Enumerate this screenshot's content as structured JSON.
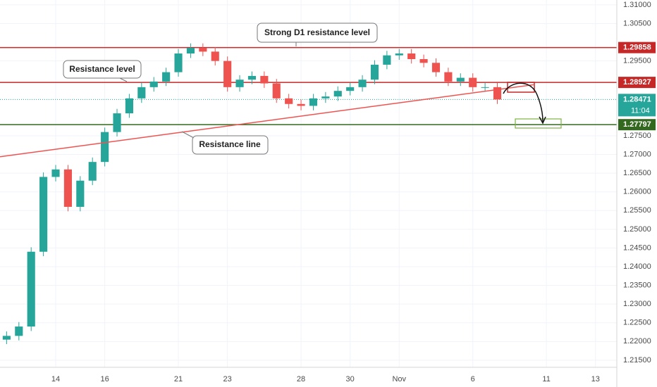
{
  "chart_data": {
    "type": "candlestick",
    "up_color": "#26a69a",
    "down_color": "#ef5350",
    "x": [
      -2,
      -1.5,
      -1,
      -0.5,
      0,
      0.5,
      1,
      1.5,
      2,
      2.5,
      3,
      3.5,
      4,
      4.5,
      5,
      5.5,
      6,
      6.5,
      7,
      7.5,
      8,
      8.5,
      9,
      9.5,
      10,
      10.5,
      11,
      11.5,
      12,
      12.5,
      13,
      13.5,
      14,
      14.5,
      15,
      15.5,
      16,
      16.5,
      17,
      17.5,
      18
    ],
    "open": [
      1.2205,
      1.2215,
      1.224,
      1.244,
      1.264,
      1.266,
      1.256,
      1.263,
      1.268,
      1.276,
      1.281,
      1.285,
      1.288,
      1.2895,
      1.292,
      1.297,
      1.2985,
      1.2975,
      1.295,
      1.288,
      1.29,
      1.291,
      1.289,
      1.285,
      1.2835,
      1.283,
      1.285,
      1.2855,
      1.287,
      1.288,
      1.29,
      1.294,
      1.2965,
      1.297,
      1.2955,
      1.2945,
      1.292,
      1.2895,
      1.2905,
      1.288,
      1.288
    ],
    "high": [
      1.2227,
      1.2252,
      1.2452,
      1.2652,
      1.2672,
      1.2672,
      1.2642,
      1.2692,
      1.2772,
      1.2822,
      1.2862,
      1.2892,
      1.2907,
      1.2932,
      1.2982,
      1.2997,
      1.2997,
      1.2987,
      1.2962,
      1.2912,
      1.2922,
      1.2922,
      1.2902,
      1.2862,
      1.2847,
      1.2862,
      1.2867,
      1.2882,
      1.2892,
      1.2912,
      1.2952,
      1.2977,
      1.2982,
      1.2982,
      1.2967,
      1.2957,
      1.2932,
      1.2917,
      1.2917,
      1.2892,
      1.2892
    ],
    "low": [
      1.2193,
      1.2203,
      1.2228,
      1.2428,
      1.2628,
      1.2548,
      1.2548,
      1.2618,
      1.2668,
      1.2748,
      1.2798,
      1.2838,
      1.2868,
      1.2883,
      1.2908,
      1.2958,
      1.2963,
      1.2938,
      1.2868,
      1.2868,
      1.2888,
      1.2878,
      1.2838,
      1.2823,
      1.2818,
      1.2818,
      1.2838,
      1.2843,
      1.2858,
      1.2868,
      1.2888,
      1.2928,
      1.2953,
      1.2943,
      1.2933,
      1.2908,
      1.2883,
      1.2883,
      1.2868,
      1.2868,
      1.2835
    ],
    "close": [
      1.2215,
      1.224,
      1.244,
      1.264,
      1.266,
      1.256,
      1.263,
      1.268,
      1.276,
      1.281,
      1.285,
      1.288,
      1.2895,
      1.292,
      1.297,
      1.2985,
      1.2975,
      1.295,
      1.288,
      1.29,
      1.291,
      1.289,
      1.285,
      1.2835,
      1.283,
      1.285,
      1.2855,
      1.287,
      1.288,
      1.29,
      1.294,
      1.2965,
      1.297,
      1.2955,
      1.2945,
      1.292,
      1.2895,
      1.2905,
      1.288,
      1.288,
      1.2847
    ],
    "xlim": [
      -2.27,
      22.87
    ],
    "ylim": [
      1.2131,
      1.3113
    ],
    "xticks": [
      {
        "value": 0,
        "label": "14"
      },
      {
        "value": 2,
        "label": "16"
      },
      {
        "value": 5,
        "label": "21"
      },
      {
        "value": 7,
        "label": "23"
      },
      {
        "value": 10,
        "label": "28"
      },
      {
        "value": 12,
        "label": "30"
      },
      {
        "value": 14,
        "label": "Nov"
      },
      {
        "value": 17,
        "label": "6"
      },
      {
        "value": 20,
        "label": "11"
      },
      {
        "value": 22,
        "label": "13"
      }
    ],
    "yticks": [
      {
        "value": 1.31,
        "label": "1.31000"
      },
      {
        "value": 1.305,
        "label": "1.30500"
      },
      {
        "value": 1.295,
        "label": "1.29500"
      },
      {
        "value": 1.275,
        "label": "1.27500"
      },
      {
        "value": 1.27,
        "label": "1.27000"
      },
      {
        "value": 1.265,
        "label": "1.26500"
      },
      {
        "value": 1.26,
        "label": "1.26000"
      },
      {
        "value": 1.255,
        "label": "1.25500"
      },
      {
        "value": 1.25,
        "label": "1.25000"
      },
      {
        "value": 1.245,
        "label": "1.24500"
      },
      {
        "value": 1.24,
        "label": "1.24000"
      },
      {
        "value": 1.235,
        "label": "1.23500"
      },
      {
        "value": 1.23,
        "label": "1.23000"
      },
      {
        "value": 1.225,
        "label": "1.22500"
      },
      {
        "value": 1.22,
        "label": "1.22000"
      },
      {
        "value": 1.215,
        "label": "1.21500"
      }
    ],
    "grid": true,
    "levels": [
      {
        "value": 1.29858,
        "color": "#c62828"
      },
      {
        "value": 1.28927,
        "color": "#c62828"
      },
      {
        "value": 1.27797,
        "color": "#33691e"
      }
    ],
    "last_price": {
      "value": 1.28471,
      "color": "#26a69a",
      "countdown": "11:04"
    },
    "trend_line": {
      "x": [
        -2.27,
        19.48
      ],
      "y": [
        1.26939,
        1.28866
      ],
      "color": "#ef5350"
    },
    "annotations": [
      {
        "text": "Strong D1 resistance level"
      },
      {
        "text": "Resistance level"
      },
      {
        "text": "Resistance line"
      }
    ]
  }
}
